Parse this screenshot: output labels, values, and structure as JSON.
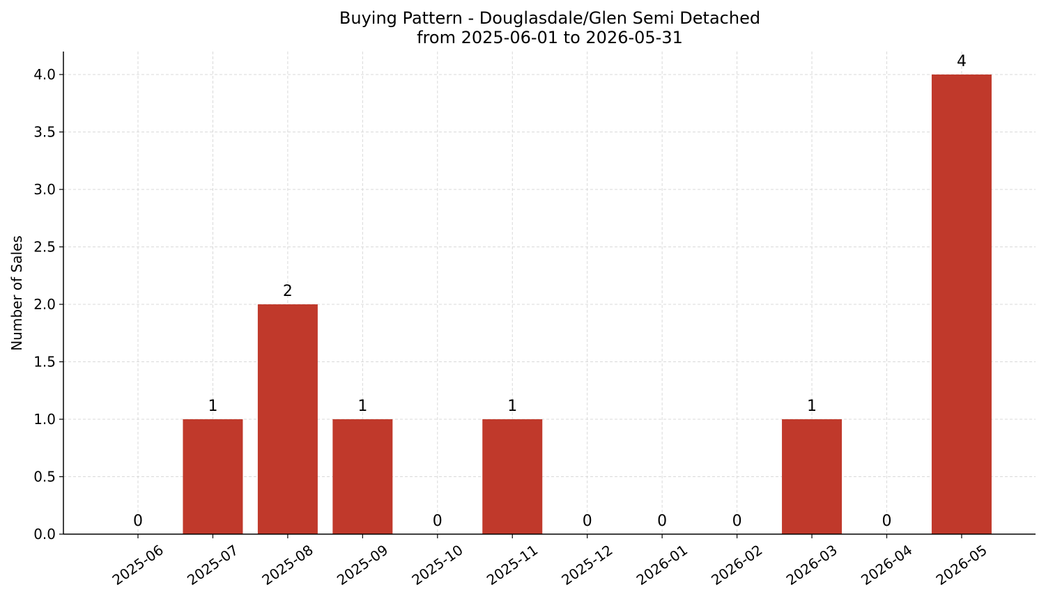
{
  "chart_data": {
    "type": "bar",
    "title": "Buying Pattern - Douglasdale/Glen Semi Detached",
    "subtitle": "from 2025-06-01 to 2026-05-31",
    "xlabel": "",
    "ylabel": "Number of Sales",
    "categories": [
      "2025-06",
      "2025-07",
      "2025-08",
      "2025-09",
      "2025-10",
      "2025-11",
      "2025-12",
      "2026-01",
      "2026-02",
      "2026-03",
      "2026-04",
      "2026-05"
    ],
    "values": [
      0,
      1,
      2,
      1,
      0,
      1,
      0,
      0,
      0,
      1,
      0,
      4
    ],
    "data_labels": [
      "0",
      "1",
      "2",
      "1",
      "0",
      "1",
      "0",
      "0",
      "0",
      "1",
      "0",
      "4"
    ],
    "ylim": [
      0,
      4.2
    ],
    "yticks": [
      0,
      0.5,
      1,
      1.5,
      2,
      2.5,
      3,
      3.5,
      4
    ],
    "ytick_labels": [
      "0.0",
      "0.5",
      "1.0",
      "1.5",
      "2.0",
      "2.5",
      "3.0",
      "3.5",
      "4.0"
    ],
    "grid": true,
    "legend": false,
    "colors": {
      "bar": "#c0392b",
      "grid": "#d9d9d9",
      "axis": "#000000"
    }
  }
}
